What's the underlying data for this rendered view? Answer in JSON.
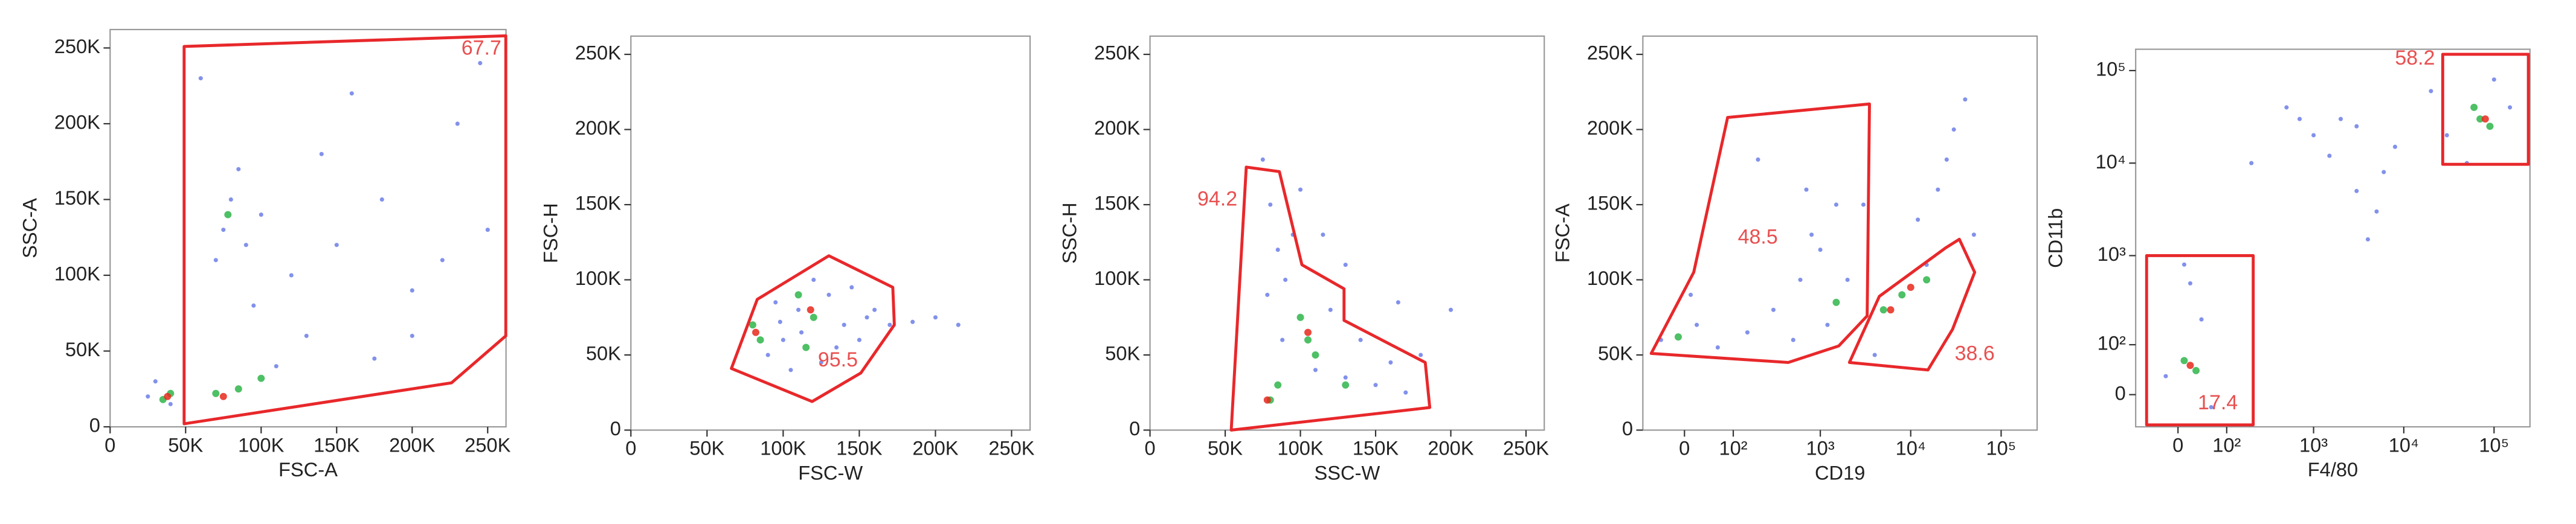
{
  "chart_data": [
    {
      "type": "scatter",
      "x_label": "FSC-A",
      "y_label": "SSC-A",
      "xscale": "linear",
      "yscale": "linear",
      "xlim": [
        0,
        262144
      ],
      "ylim": [
        0,
        262144
      ],
      "xticks": [
        0,
        {
          "value": 50000,
          "label": "50K"
        },
        {
          "value": 100000,
          "label": "100K"
        },
        {
          "value": 150000,
          "label": "150K"
        },
        {
          "value": 200000,
          "label": "200K"
        },
        {
          "value": 250000,
          "label": "250K"
        }
      ],
      "yticks": [
        0,
        {
          "value": 50000,
          "label": "50K"
        },
        {
          "value": 100000,
          "label": "100K"
        },
        {
          "value": 150000,
          "label": "150K"
        },
        {
          "value": 200000,
          "label": "200K"
        },
        {
          "value": 250000,
          "label": "250K"
        }
      ],
      "series": [
        {
          "color": "#6c7ee8",
          "x": [
            80000,
            75000,
            90000,
            70000,
            100000,
            85000,
            120000,
            150000,
            180000,
            200000,
            230000,
            160000,
            130000,
            110000,
            200000,
            250000,
            60000,
            140000,
            220000,
            95000,
            30000,
            40000,
            25000,
            175000,
            245000
          ],
          "values": [
            150000,
            130000,
            120000,
            110000,
            140000,
            170000,
            100000,
            120000,
            150000,
            90000,
            200000,
            220000,
            60000,
            40000,
            60000,
            130000,
            230000,
            180000,
            110000,
            80000,
            30000,
            15000,
            20000,
            45000,
            240000
          ]
        },
        {
          "color": "#2fb54a",
          "x": [
            40000,
            35000,
            70000,
            85000,
            100000,
            78000
          ],
          "values": [
            22000,
            18000,
            22000,
            25000,
            32000,
            140000
          ]
        },
        {
          "color": "#e8281c",
          "x": [
            38000,
            75000
          ],
          "values": [
            20000,
            20000
          ]
        }
      ],
      "gate_color": "#e8282b",
      "gates": [
        {
          "value": 67.7,
          "points": [
            [
              49000,
              251000
            ],
            [
              49000,
              2000
            ],
            [
              226000,
              29000
            ],
            [
              262000,
              60000
            ],
            [
              262000,
              258000
            ]
          ]
        }
      ]
    },
    {
      "type": "scatter",
      "x_label": "FSC-W",
      "y_label": "FSC-H",
      "xscale": "linear",
      "yscale": "linear",
      "xlim": [
        0,
        262144
      ],
      "ylim": [
        0,
        262144
      ],
      "xticks": [
        0,
        {
          "value": 50000,
          "label": "50K"
        },
        {
          "value": 100000,
          "label": "100K"
        },
        {
          "value": 150000,
          "label": "150K"
        },
        {
          "value": 200000,
          "label": "200K"
        },
        {
          "value": 250000,
          "label": "250K"
        }
      ],
      "yticks": [
        0,
        {
          "value": 50000,
          "label": "50K"
        },
        {
          "value": 100000,
          "label": "100K"
        },
        {
          "value": 150000,
          "label": "150K"
        },
        {
          "value": 200000,
          "label": "200K"
        },
        {
          "value": 250000,
          "label": "250K"
        }
      ],
      "series": [
        {
          "color": "#6c7ee8",
          "x": [
            90000,
            100000,
            110000,
            130000,
            140000,
            150000,
            160000,
            125000,
            105000,
            95000,
            170000,
            185000,
            200000,
            215000,
            145000,
            120000,
            135000,
            155000,
            112000,
            98000
          ],
          "values": [
            50000,
            60000,
            80000,
            90000,
            70000,
            60000,
            80000,
            45000,
            40000,
            85000,
            70000,
            72000,
            75000,
            70000,
            95000,
            100000,
            55000,
            75000,
            65000,
            72000
          ]
        },
        {
          "color": "#2fb54a",
          "x": [
            80000,
            85000,
            120000,
            115000,
            110000
          ],
          "values": [
            70000,
            60000,
            75000,
            55000,
            90000
          ]
        },
        {
          "color": "#e8281c",
          "x": [
            82000,
            118000
          ],
          "values": [
            65000,
            80000
          ]
        }
      ],
      "gate_color": "#e8282b",
      "gates": [
        {
          "value": 95.5,
          "points": [
            [
              66000,
              41000
            ],
            [
              83000,
              87000
            ],
            [
              130000,
              116000
            ],
            [
              172000,
              95000
            ],
            [
              173000,
              70000
            ],
            [
              151000,
              38000
            ],
            [
              119000,
              19000
            ]
          ]
        }
      ]
    },
    {
      "type": "scatter",
      "x_label": "SSC-W",
      "y_label": "SSC-H",
      "xscale": "linear",
      "yscale": "linear",
      "xlim": [
        0,
        262144
      ],
      "ylim": [
        0,
        262144
      ],
      "xticks": [
        0,
        {
          "value": 50000,
          "label": "50K"
        },
        {
          "value": 100000,
          "label": "100K"
        },
        {
          "value": 150000,
          "label": "150K"
        },
        {
          "value": 200000,
          "label": "200K"
        },
        {
          "value": 250000,
          "label": "250K"
        }
      ],
      "yticks": [
        0,
        {
          "value": 50000,
          "label": "50K"
        },
        {
          "value": 100000,
          "label": "100K"
        },
        {
          "value": 150000,
          "label": "150K"
        },
        {
          "value": 200000,
          "label": "200K"
        },
        {
          "value": 250000,
          "label": "250K"
        }
      ],
      "series": [
        {
          "color": "#6c7ee8",
          "x": [
            75000,
            80000,
            85000,
            90000,
            78000,
            95000,
            88000,
            110000,
            130000,
            150000,
            170000,
            160000,
            120000,
            140000,
            180000,
            200000,
            100000,
            130000,
            115000,
            165000
          ],
          "values": [
            180000,
            150000,
            120000,
            100000,
            90000,
            130000,
            60000,
            40000,
            35000,
            30000,
            25000,
            45000,
            80000,
            60000,
            50000,
            80000,
            160000,
            110000,
            130000,
            85000
          ]
        },
        {
          "color": "#2fb54a",
          "x": [
            80000,
            85000,
            105000,
            100000,
            130000,
            110000
          ],
          "values": [
            20000,
            30000,
            60000,
            75000,
            30000,
            50000
          ]
        },
        {
          "color": "#e8281c",
          "x": [
            78000,
            105000
          ],
          "values": [
            20000,
            65000
          ]
        }
      ],
      "gate_color": "#e8282b",
      "gates": [
        {
          "value": 94.2,
          "points": [
            [
              64000,
              175000
            ],
            [
              86000,
              172000
            ],
            [
              101000,
              110000
            ],
            [
              129000,
              94000
            ],
            [
              129000,
              73000
            ],
            [
              183000,
              45000
            ],
            [
              186000,
              15000
            ],
            [
              54000,
              0
            ]
          ]
        }
      ]
    },
    {
      "type": "scatter",
      "x_label": "CD19",
      "y_label": "FSC-A",
      "xscale": "biexponential",
      "yscale": "linear",
      "xlim": [
        -80,
        250000
      ],
      "ylim": [
        0,
        262144
      ],
      "xticks": [
        0,
        {
          "value": 100,
          "label": "10²"
        },
        {
          "value": 1000,
          "label": "10³"
        },
        {
          "value": 10000,
          "label": "10⁴"
        },
        {
          "value": 100000,
          "label": "10⁵"
        }
      ],
      "yticks": [
        0,
        {
          "value": 50000,
          "label": "50K"
        },
        {
          "value": 100000,
          "label": "100K"
        },
        {
          "value": 150000,
          "label": "150K"
        },
        {
          "value": 200000,
          "label": "200K"
        },
        {
          "value": 250000,
          "label": "250K"
        }
      ],
      "series": [
        {
          "color": "#6c7ee8",
          "x": [
            -40,
            20,
            60,
            150,
            300,
            600,
            1000,
            1500,
            800,
            2000,
            500,
            3000,
            20000,
            30000,
            25000,
            40000,
            15000,
            4000,
            200,
            1200,
            10,
            700,
            50000,
            12000
          ],
          "values": [
            60000,
            70000,
            55000,
            65000,
            80000,
            100000,
            120000,
            150000,
            130000,
            100000,
            60000,
            150000,
            160000,
            200000,
            180000,
            220000,
            110000,
            50000,
            180000,
            70000,
            90000,
            160000,
            130000,
            140000
          ]
        },
        {
          "color": "#2fb54a",
          "x": [
            5000,
            8000,
            -10,
            1500,
            15000
          ],
          "values": [
            80000,
            90000,
            62000,
            85000,
            100000
          ]
        },
        {
          "color": "#e8281c",
          "x": [
            6000,
            10000
          ],
          "values": [
            80000,
            95000
          ]
        }
      ],
      "gate_color": "#e8282b",
      "gates": [
        {
          "value": 48.5,
          "points": [
            [
              -60,
              51000
            ],
            [
              15,
              105000
            ],
            [
              84,
              208000
            ],
            [
              3500,
              217000
            ],
            [
              3300,
              76000
            ],
            [
              1600,
              56000
            ],
            [
              440,
              45000
            ]
          ]
        },
        {
          "value": 38.6,
          "points": [
            [
              2100,
              45000
            ],
            [
              4500,
              89000
            ],
            [
              24000,
              121000
            ],
            [
              34500,
              127000
            ],
            [
              51000,
              105000
            ],
            [
              29000,
              67000
            ],
            [
              15500,
              40000
            ]
          ]
        }
      ]
    },
    {
      "type": "scatter",
      "x_label": "F4/80",
      "y_label": "CD11b",
      "xscale": "biexponential",
      "yscale": "biexponential",
      "xlim": [
        -82,
        250000
      ],
      "ylim": [
        -56,
        170000
      ],
      "xticks": [
        0,
        {
          "value": 100,
          "label": "10²"
        },
        {
          "value": 1000,
          "label": "10³"
        },
        {
          "value": 10000,
          "label": "10⁴"
        },
        {
          "value": 100000,
          "label": "10⁵"
        }
      ],
      "yticks": [
        0,
        {
          "value": 100,
          "label": "10²"
        },
        {
          "value": 1000,
          "label": "10³"
        },
        {
          "value": 10000,
          "label": "10⁴"
        },
        {
          "value": 100000,
          "label": "10⁵"
        }
      ],
      "series": [
        {
          "color": "#6c7ee8",
          "x": [
            20,
            40,
            -20,
            60,
            10,
            1000,
            2000,
            3000,
            5000,
            8000,
            500,
            200,
            20000,
            50000,
            30000,
            4000,
            6000,
            1500,
            150000,
            100000,
            700,
            3000
          ],
          "values": [
            500,
            200,
            30,
            -20,
            800,
            20000,
            30000,
            5000,
            3000,
            15000,
            40000,
            10000,
            60000,
            10000,
            20000,
            1500,
            8000,
            12000,
            40000,
            80000,
            30000,
            25000
          ]
        },
        {
          "color": "#2fb54a",
          "x": [
            30,
            10,
            70000,
            90000,
            60000
          ],
          "values": [
            40,
            60,
            30000,
            25000,
            40000
          ]
        },
        {
          "color": "#e8281c",
          "x": [
            80000,
            20
          ],
          "values": [
            30000,
            50
          ]
        }
      ],
      "gate_color": "#e8282b",
      "gates": [
        {
          "value": 58.2,
          "points": [
            [
              27000,
              150000
            ],
            [
              240000,
              150000
            ],
            [
              240000,
              9700
            ],
            [
              27000,
              9700
            ]
          ]
        },
        {
          "value": 17.4,
          "points": [
            [
              -56,
              1000
            ],
            [
              210,
              1000
            ],
            [
              210,
              -52
            ],
            [
              -56,
              -52
            ]
          ]
        }
      ]
    }
  ]
}
